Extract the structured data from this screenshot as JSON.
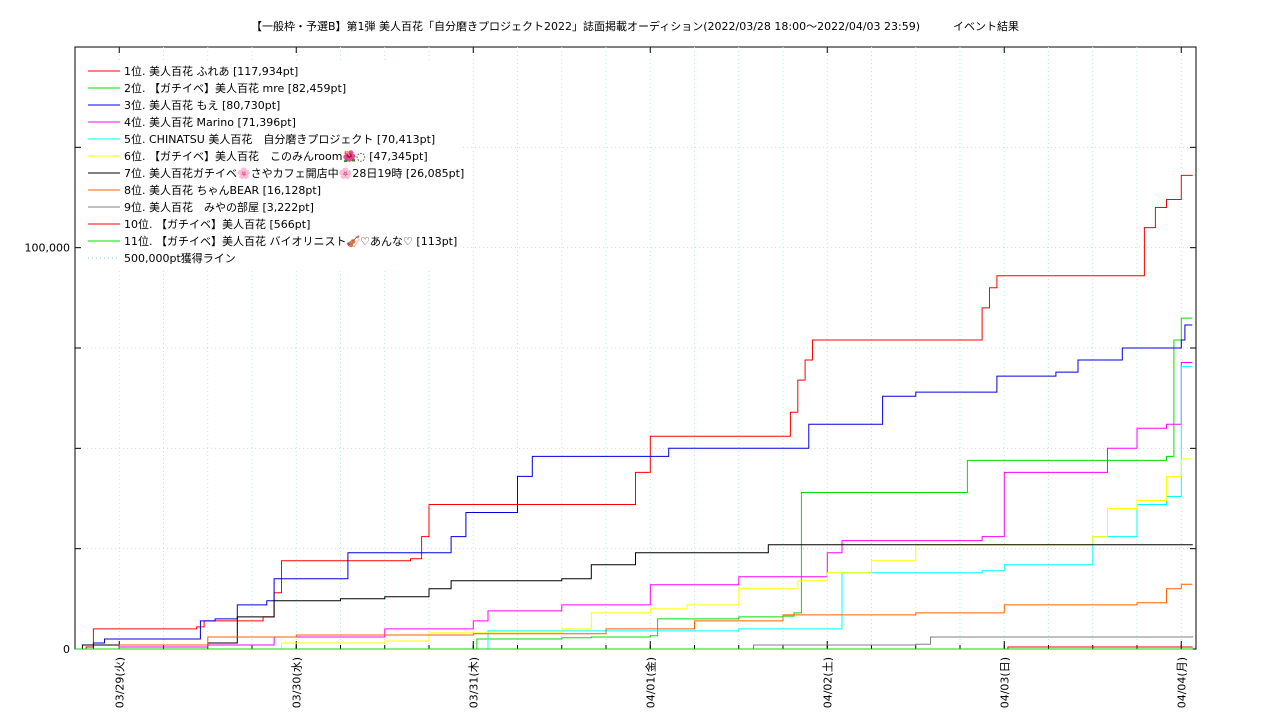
{
  "chart_data": {
    "type": "line",
    "title": "【一般枠・予選B】第1弾 美人百花「自分磨きプロジェクト2022」誌面掲載オーディション(2022/03/28 18:00〜2022/04/03 23:59)　　　イベント結果",
    "xlabel": "",
    "ylabel": "",
    "x_range": [
      "2022-03-28 18:00",
      "2022-04-04 02:00"
    ],
    "ylim": [
      0,
      150000
    ],
    "y_ticks": [
      {
        "value": 0,
        "label": "0"
      },
      {
        "value": 25000,
        "label": ""
      },
      {
        "value": 50000,
        "label": ""
      },
      {
        "value": 75000,
        "label": ""
      },
      {
        "value": 100000,
        "label": "100,000"
      },
      {
        "value": 125000,
        "label": ""
      }
    ],
    "x_ticks": [
      {
        "value": "2022-03-29 00:00",
        "label": "03/29(火)"
      },
      {
        "value": "2022-03-30 00:00",
        "label": "03/30(水)"
      },
      {
        "value": "2022-03-31 00:00",
        "label": "03/31(木)"
      },
      {
        "value": "2022-04-01 00:00",
        "label": "04/01(金)"
      },
      {
        "value": "2022-04-02 00:00",
        "label": "04/02(土)"
      },
      {
        "value": "2022-04-03 00:00",
        "label": "04/03(日)"
      },
      {
        "value": "2022-04-04 00:00",
        "label": "04/04(月)"
      }
    ],
    "grid": true,
    "legend_position": "top-left",
    "series": [
      {
        "name": "1位. 美人百花 ふれあ [117,934pt]",
        "color": "#ff0000",
        "points": [
          [
            "2022-03-28 18:00",
            0
          ],
          [
            "2022-03-28 19:30",
            500
          ],
          [
            "2022-03-28 20:30",
            5000
          ],
          [
            "2022-03-29 10:30",
            5500
          ],
          [
            "2022-03-29 11:30",
            7000
          ],
          [
            "2022-03-29 19:30",
            8000
          ],
          [
            "2022-03-29 21:00",
            14000
          ],
          [
            "2022-03-29 22:00",
            22000
          ],
          [
            "2022-03-30 15:30",
            22500
          ],
          [
            "2022-03-30 17:00",
            28000
          ],
          [
            "2022-03-30 18:00",
            36000
          ],
          [
            "2022-03-31 21:00",
            36000
          ],
          [
            "2022-03-31 22:00",
            44000
          ],
          [
            "2022-04-01 00:00",
            53000
          ],
          [
            "2022-04-01 18:00",
            53000
          ],
          [
            "2022-04-01 19:00",
            59000
          ],
          [
            "2022-04-01 20:00",
            67000
          ],
          [
            "2022-04-01 21:00",
            72000
          ],
          [
            "2022-04-01 22:00",
            77000
          ],
          [
            "2022-04-02 20:00",
            77000
          ],
          [
            "2022-04-02 21:00",
            85000
          ],
          [
            "2022-04-02 22:00",
            90000
          ],
          [
            "2022-04-02 23:00",
            93000
          ],
          [
            "2022-04-03 18:00",
            93000
          ],
          [
            "2022-04-03 19:00",
            105000
          ],
          [
            "2022-04-03 20:30",
            110000
          ],
          [
            "2022-04-03 22:00",
            112000
          ],
          [
            "2022-04-04 00:00",
            118000
          ],
          [
            "2022-04-04 01:30",
            117934
          ]
        ]
      },
      {
        "name": "2位. 【ガチイベ】美人百花 mre [82,459pt]",
        "color": "#00e000",
        "points": [
          [
            "2022-03-28 18:00",
            0
          ],
          [
            "2022-03-30 20:00",
            0
          ],
          [
            "2022-03-31 00:00",
            0
          ],
          [
            "2022-03-31 00:30",
            2500
          ],
          [
            "2022-03-31 12:00",
            2800
          ],
          [
            "2022-03-31 16:00",
            3000
          ],
          [
            "2022-04-01 00:00",
            3300
          ],
          [
            "2022-04-01 01:00",
            7500
          ],
          [
            "2022-04-01 12:00",
            8000
          ],
          [
            "2022-04-01 18:00",
            8200
          ],
          [
            "2022-04-01 19:30",
            9000
          ],
          [
            "2022-04-01 20:30",
            39000
          ],
          [
            "2022-04-02 18:00",
            39000
          ],
          [
            "2022-04-02 19:00",
            47000
          ],
          [
            "2022-04-03 18:00",
            47000
          ],
          [
            "2022-04-03 22:00",
            48000
          ],
          [
            "2022-04-03 23:00",
            77000
          ],
          [
            "2022-04-04 00:00",
            82459
          ],
          [
            "2022-04-04 01:30",
            82459
          ]
        ]
      },
      {
        "name": "3位. 美人百花 もえ [80,730pt]",
        "color": "#0000e0",
        "points": [
          [
            "2022-03-28 18:00",
            0
          ],
          [
            "2022-03-28 20:30",
            1500
          ],
          [
            "2022-03-28 22:00",
            2500
          ],
          [
            "2022-03-29 10:30",
            2500
          ],
          [
            "2022-03-29 11:00",
            7000
          ],
          [
            "2022-03-29 13:00",
            7500
          ],
          [
            "2022-03-29 16:00",
            11000
          ],
          [
            "2022-03-29 20:00",
            12000
          ],
          [
            "2022-03-29 21:00",
            17500
          ],
          [
            "2022-03-30 06:00",
            17500
          ],
          [
            "2022-03-30 07:00",
            24000
          ],
          [
            "2022-03-30 20:00",
            24000
          ],
          [
            "2022-03-30 21:00",
            28000
          ],
          [
            "2022-03-30 23:00",
            34000
          ],
          [
            "2022-03-31 05:00",
            34000
          ],
          [
            "2022-03-31 06:00",
            43000
          ],
          [
            "2022-03-31 08:00",
            48000
          ],
          [
            "2022-04-01 02:00",
            48000
          ],
          [
            "2022-04-01 02:30",
            50000
          ],
          [
            "2022-04-01 20:00",
            50000
          ],
          [
            "2022-04-01 21:30",
            56000
          ],
          [
            "2022-04-02 06:00",
            56000
          ],
          [
            "2022-04-02 07:30",
            63000
          ],
          [
            "2022-04-02 12:00",
            64000
          ],
          [
            "2022-04-02 21:00",
            64000
          ],
          [
            "2022-04-02 23:00",
            68000
          ],
          [
            "2022-04-03 07:00",
            69000
          ],
          [
            "2022-04-03 10:00",
            72000
          ],
          [
            "2022-04-03 16:00",
            75000
          ],
          [
            "2022-04-04 00:00",
            77000
          ],
          [
            "2022-04-04 00:30",
            80730
          ],
          [
            "2022-04-04 01:30",
            80730
          ]
        ]
      },
      {
        "name": "4位. 美人百花 Marino [71,396pt]",
        "color": "#ff00ff",
        "points": [
          [
            "2022-03-28 18:00",
            0
          ],
          [
            "2022-03-29 00:00",
            500
          ],
          [
            "2022-03-29 12:00",
            1000
          ],
          [
            "2022-03-29 21:00",
            3000
          ],
          [
            "2022-03-30 12:00",
            5000
          ],
          [
            "2022-03-31 00:00",
            7000
          ],
          [
            "2022-03-31 02:00",
            9500
          ],
          [
            "2022-03-31 12:00",
            11000
          ],
          [
            "2022-04-01 00:00",
            16000
          ],
          [
            "2022-04-01 12:00",
            18000
          ],
          [
            "2022-04-02 00:00",
            24000
          ],
          [
            "2022-04-02 02:00",
            27000
          ],
          [
            "2022-04-02 21:00",
            28000
          ],
          [
            "2022-04-03 00:00",
            44000
          ],
          [
            "2022-04-03 12:00",
            44000
          ],
          [
            "2022-04-03 14:00",
            50000
          ],
          [
            "2022-04-03 18:00",
            55000
          ],
          [
            "2022-04-03 22:00",
            56000
          ],
          [
            "2022-04-04 00:00",
            71396
          ],
          [
            "2022-04-04 01:30",
            71396
          ]
        ]
      },
      {
        "name": "5位. CHINATSU 美人百花　自分磨きプロジェクト [70,413pt]",
        "color": "#00ffff",
        "points": [
          [
            "2022-03-28 18:00",
            0
          ],
          [
            "2022-03-31 00:00",
            0
          ],
          [
            "2022-03-31 02:00",
            4500
          ],
          [
            "2022-04-01 12:00",
            5000
          ],
          [
            "2022-04-02 00:00",
            5000
          ],
          [
            "2022-04-02 02:00",
            19000
          ],
          [
            "2022-04-02 21:00",
            19500
          ],
          [
            "2022-04-03 00:00",
            21000
          ],
          [
            "2022-04-03 12:00",
            28000
          ],
          [
            "2022-04-03 18:00",
            36000
          ],
          [
            "2022-04-03 22:00",
            38000
          ],
          [
            "2022-04-04 00:00",
            70413
          ],
          [
            "2022-04-04 01:30",
            70413
          ]
        ]
      },
      {
        "name": "6位. 【ガチイベ】美人百花　このみんroom🌺◌ [47,345pt]",
        "color": "#ffff00",
        "points": [
          [
            "2022-03-28 18:00",
            0
          ],
          [
            "2022-03-29 21:00",
            0
          ],
          [
            "2022-03-29 22:00",
            1500
          ],
          [
            "2022-03-30 12:00",
            2000
          ],
          [
            "2022-03-30 18:00",
            4000
          ],
          [
            "2022-03-31 12:00",
            5000
          ],
          [
            "2022-03-31 16:00",
            9000
          ],
          [
            "2022-04-01 00:00",
            10000
          ],
          [
            "2022-04-01 05:00",
            11000
          ],
          [
            "2022-04-01 12:00",
            15000
          ],
          [
            "2022-04-01 20:00",
            17000
          ],
          [
            "2022-04-02 00:00",
            19000
          ],
          [
            "2022-04-02 06:00",
            22000
          ],
          [
            "2022-04-02 12:00",
            26000
          ],
          [
            "2022-04-03 12:00",
            28000
          ],
          [
            "2022-04-03 14:00",
            35000
          ],
          [
            "2022-04-03 18:00",
            37000
          ],
          [
            "2022-04-03 22:00",
            43000
          ],
          [
            "2022-04-04 00:00",
            47345
          ],
          [
            "2022-04-04 01:30",
            47345
          ]
        ]
      },
      {
        "name": "7位. 美人百花ガチイベ🌸さやカフェ開店中🌸28日19時 [26,085pt]",
        "color": "#000000",
        "points": [
          [
            "2022-03-28 18:00",
            0
          ],
          [
            "2022-03-28 19:00",
            1000
          ],
          [
            "2022-03-29 12:00",
            1500
          ],
          [
            "2022-03-29 16:00",
            8000
          ],
          [
            "2022-03-29 21:00",
            12000
          ],
          [
            "2022-03-30 06:00",
            12500
          ],
          [
            "2022-03-30 12:00",
            13000
          ],
          [
            "2022-03-30 18:00",
            15000
          ],
          [
            "2022-03-30 21:00",
            17000
          ],
          [
            "2022-03-31 12:00",
            17500
          ],
          [
            "2022-03-31 16:00",
            21000
          ],
          [
            "2022-03-31 22:00",
            24000
          ],
          [
            "2022-04-01 12:00",
            24000
          ],
          [
            "2022-04-01 16:00",
            26000
          ],
          [
            "2022-04-04 01:30",
            26085
          ]
        ]
      },
      {
        "name": "8位. 美人百花 ちゃんBEAR [16,128pt]",
        "color": "#ff6000",
        "points": [
          [
            "2022-03-28 18:00",
            0
          ],
          [
            "2022-03-29 00:00",
            1000
          ],
          [
            "2022-03-29 12:00",
            3000
          ],
          [
            "2022-03-30 00:00",
            3500
          ],
          [
            "2022-03-31 00:00",
            3800
          ],
          [
            "2022-03-31 18:00",
            5000
          ],
          [
            "2022-04-01 06:00",
            7000
          ],
          [
            "2022-04-01 18:00",
            8500
          ],
          [
            "2022-04-02 12:00",
            9000
          ],
          [
            "2022-04-03 00:00",
            11000
          ],
          [
            "2022-04-03 18:00",
            11500
          ],
          [
            "2022-04-03 22:00",
            15000
          ],
          [
            "2022-04-04 00:00",
            16128
          ],
          [
            "2022-04-04 01:30",
            16128
          ]
        ]
      },
      {
        "name": "9位. 美人百花　みやの部屋 [3,222pt]",
        "color": "#808080",
        "points": [
          [
            "2022-03-28 18:00",
            0
          ],
          [
            "2022-04-01 12:00",
            0
          ],
          [
            "2022-04-01 14:00",
            1000
          ],
          [
            "2022-04-02 12:00",
            1200
          ],
          [
            "2022-04-02 14:00",
            3000
          ],
          [
            "2022-04-04 01:30",
            3222
          ]
        ]
      },
      {
        "name": "10位. 【ガチイベ】美人百花 [566pt]",
        "color": "#ff0000",
        "points": [
          [
            "2022-03-28 18:00",
            0
          ],
          [
            "2022-04-03 00:00",
            0
          ],
          [
            "2022-04-03 00:30",
            500
          ],
          [
            "2022-04-04 01:30",
            566
          ]
        ]
      },
      {
        "name": "11位. 【ガチイベ】美人百花 バイオリニスト🎻♡あんな♡ [113pt]",
        "color": "#00e000",
        "points": [
          [
            "2022-03-28 18:00",
            0
          ],
          [
            "2022-04-04 01:30",
            113
          ]
        ]
      }
    ],
    "reference_line": {
      "name": "500,000pt獲得ライン",
      "value": 500000,
      "color": "#90c8ff"
    }
  }
}
